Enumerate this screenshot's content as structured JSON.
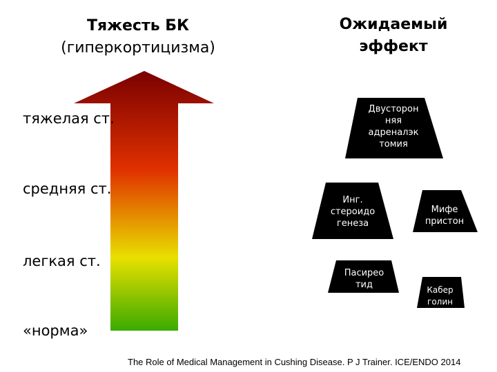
{
  "headers": {
    "left_line1": "Тяжесть БК",
    "left_line2": "(гиперкортицизма)",
    "right_line1": "Ожидаемый",
    "right_line2": "эффект"
  },
  "levels": {
    "severe": "тяжелая ст.",
    "moderate": "средняя ст.",
    "mild": "легкая ст.",
    "norm": "«норма»"
  },
  "treatments": {
    "adrenalectomy": [
      "Двусторон",
      "няя",
      "адреналэк",
      "томия"
    ],
    "steroidogenesis": [
      "Инг.",
      "стероидо",
      "генеза"
    ],
    "mifepristone": [
      "Мифе",
      "пристон"
    ],
    "pasireotide": [
      "Пасирео",
      "тид"
    ],
    "cabergoline": [
      "Кабер",
      "голин"
    ]
  },
  "colors": {
    "arrow_top": "#7a0000",
    "arrow_mid": "#e03000",
    "arrow_yellow": "#e8e000",
    "arrow_bottom": "#3aaa00",
    "shape_fill": "#000000"
  },
  "citation": "The Role of Medical Management in Cushing Disease. P J Trainer. ICE/ENDO 2014"
}
